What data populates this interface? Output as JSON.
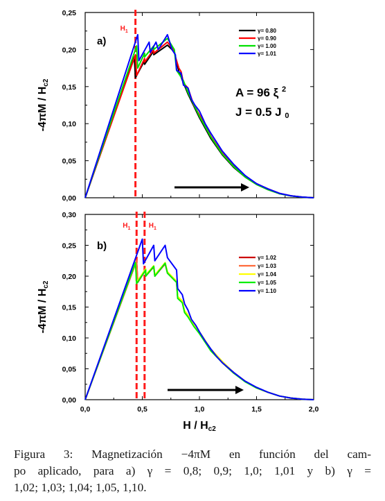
{
  "figure": {
    "caption_lines": [
      "Figura 3: Magnetización −4πM en función del cam-",
      "po aplicado, para a) γ = 0,8; 0,9; 1,0; 1,01 y b) γ =",
      "1,02; 1,03; 1,04; 1,05, 1,10."
    ]
  },
  "chart_data": [
    {
      "type": "line",
      "panel_label": "a)",
      "title": "",
      "xlabel": "",
      "ylabel": "-4πM / Hc2",
      "xlim": [
        0,
        2
      ],
      "ylim": [
        0,
        0.25
      ],
      "yticks": [
        "0,00",
        "0,05",
        "0,10",
        "0,15",
        "0,20",
        "0,25"
      ],
      "xticks": [],
      "grid": false,
      "legend_placement": "top-right",
      "annotations": {
        "marker_label": "H1",
        "marker_lines_x": [
          0.44
        ],
        "param_A": "A = 96 ξ 2",
        "param_J": "J = 0.5 J 0",
        "arrow": "increasing H"
      },
      "series": [
        {
          "name": "γ= 0.80",
          "color": "#000000",
          "points": [
            [
              0,
              0
            ],
            [
              0.43,
              0.19
            ],
            [
              0.44,
              0.162
            ],
            [
              0.52,
              0.185
            ],
            [
              0.52,
              0.18
            ],
            [
              0.6,
              0.198
            ],
            [
              0.6,
              0.193
            ],
            [
              0.72,
              0.206
            ],
            [
              0.78,
              0.197
            ],
            [
              0.82,
              0.17
            ],
            [
              0.9,
              0.14
            ],
            [
              1.0,
              0.108
            ],
            [
              1.1,
              0.08
            ],
            [
              1.2,
              0.058
            ],
            [
              1.3,
              0.041
            ],
            [
              1.4,
              0.028
            ],
            [
              1.5,
              0.018
            ],
            [
              1.6,
              0.011
            ],
            [
              1.7,
              0.0055
            ],
            [
              1.8,
              0.0025
            ],
            [
              1.9,
              0.0008
            ],
            [
              2.0,
              0
            ]
          ]
        },
        {
          "name": "γ= 0.90",
          "color": "#ff0000",
          "points": [
            [
              0,
              0
            ],
            [
              0.44,
              0.193
            ],
            [
              0.45,
              0.165
            ],
            [
              0.52,
              0.188
            ],
            [
              0.52,
              0.183
            ],
            [
              0.6,
              0.2
            ],
            [
              0.6,
              0.195
            ],
            [
              0.72,
              0.21
            ],
            [
              0.78,
              0.198
            ],
            [
              0.79,
              0.19
            ],
            [
              0.82,
              0.175
            ],
            [
              0.84,
              0.17
            ],
            [
              0.86,
              0.155
            ],
            [
              0.9,
              0.148
            ],
            [
              0.95,
              0.125
            ],
            [
              1.0,
              0.112
            ],
            [
              1.1,
              0.083
            ],
            [
              1.2,
              0.06
            ],
            [
              1.3,
              0.043
            ],
            [
              1.4,
              0.029
            ],
            [
              1.5,
              0.019
            ],
            [
              1.6,
              0.012
            ],
            [
              1.7,
              0.006
            ],
            [
              1.8,
              0.0027
            ],
            [
              1.9,
              0.0009
            ],
            [
              2.0,
              0
            ]
          ]
        },
        {
          "name": "γ= 1.00",
          "color": "#00e000",
          "points": [
            [
              0,
              0
            ],
            [
              0.45,
              0.205
            ],
            [
              0.46,
              0.175
            ],
            [
              0.52,
              0.195
            ],
            [
              0.52,
              0.19
            ],
            [
              0.6,
              0.205
            ],
            [
              0.6,
              0.2
            ],
            [
              0.72,
              0.215
            ],
            [
              0.78,
              0.2
            ],
            [
              0.8,
              0.172
            ],
            [
              0.86,
              0.158
            ],
            [
              0.9,
              0.142
            ],
            [
              1.0,
              0.11
            ],
            [
              1.1,
              0.082
            ],
            [
              1.2,
              0.059
            ],
            [
              1.3,
              0.042
            ],
            [
              1.4,
              0.028
            ],
            [
              1.5,
              0.018
            ],
            [
              1.6,
              0.011
            ],
            [
              1.7,
              0.0055
            ],
            [
              1.8,
              0.0025
            ],
            [
              1.9,
              0.0008
            ],
            [
              2.0,
              0
            ]
          ]
        },
        {
          "name": "γ= 1.01",
          "color": "#0000ff",
          "points": [
            [
              0,
              0
            ],
            [
              0.46,
              0.22
            ],
            [
              0.47,
              0.185
            ],
            [
              0.56,
              0.21
            ],
            [
              0.57,
              0.196
            ],
            [
              0.62,
              0.21
            ],
            [
              0.64,
              0.2
            ],
            [
              0.72,
              0.22
            ],
            [
              0.76,
              0.2
            ],
            [
              0.79,
              0.193
            ],
            [
              0.8,
              0.172
            ],
            [
              0.84,
              0.168
            ],
            [
              0.86,
              0.152
            ],
            [
              0.9,
              0.148
            ],
            [
              0.93,
              0.133
            ],
            [
              0.96,
              0.125
            ],
            [
              1.0,
              0.117
            ],
            [
              1.05,
              0.1
            ],
            [
              1.1,
              0.087
            ],
            [
              1.2,
              0.063
            ],
            [
              1.3,
              0.045
            ],
            [
              1.4,
              0.03
            ],
            [
              1.5,
              0.019
            ],
            [
              1.6,
              0.012
            ],
            [
              1.7,
              0.006
            ],
            [
              1.8,
              0.0027
            ],
            [
              1.9,
              0.0009
            ],
            [
              2.0,
              0
            ]
          ]
        }
      ]
    },
    {
      "type": "line",
      "panel_label": "b)",
      "title": "",
      "xlabel": "H / Hc2",
      "ylabel": "-4πM / Hc2",
      "xlim": [
        0,
        2
      ],
      "ylim": [
        0,
        0.3
      ],
      "yticks": [
        "0,00",
        "0,05",
        "0,10",
        "0,15",
        "0,20",
        "0,25",
        "0,30"
      ],
      "xticks": [
        "0,0",
        "0,5",
        "1,0",
        "1,5",
        "2,0"
      ],
      "grid": false,
      "legend_placement": "right",
      "annotations": {
        "marker_labels": [
          "H1",
          "H1"
        ],
        "marker_lines_x": [
          0.45,
          0.52
        ],
        "arrow": "increasing H"
      },
      "series": [
        {
          "name": "γ= 1.02",
          "color": "#cc0000",
          "points": [
            [
              0,
              0
            ],
            [
              0.45,
              0.225
            ],
            [
              0.46,
              0.19
            ],
            [
              0.53,
              0.21
            ],
            [
              0.53,
              0.2
            ],
            [
              0.6,
              0.215
            ],
            [
              0.61,
              0.2
            ],
            [
              0.7,
              0.22
            ],
            [
              0.72,
              0.205
            ],
            [
              0.8,
              0.19
            ],
            [
              0.81,
              0.165
            ],
            [
              0.85,
              0.158
            ],
            [
              0.87,
              0.142
            ],
            [
              0.9,
              0.135
            ],
            [
              0.95,
              0.12
            ],
            [
              1.0,
              0.108
            ],
            [
              1.05,
              0.094
            ],
            [
              1.1,
              0.08
            ],
            [
              1.2,
              0.06
            ],
            [
              1.3,
              0.043
            ],
            [
              1.4,
              0.03
            ],
            [
              1.5,
              0.019
            ],
            [
              1.6,
              0.012
            ],
            [
              1.7,
              0.006
            ],
            [
              1.8,
              0.0027
            ],
            [
              1.9,
              0.0009
            ],
            [
              2.0,
              0
            ]
          ]
        },
        {
          "name": "γ= 1.03",
          "color": "#ff6a3a",
          "points": [
            [
              0,
              0
            ],
            [
              0.45,
              0.226
            ],
            [
              0.46,
              0.192
            ],
            [
              0.53,
              0.211
            ],
            [
              0.53,
              0.201
            ],
            [
              0.6,
              0.216
            ],
            [
              0.61,
              0.201
            ],
            [
              0.7,
              0.221
            ],
            [
              0.72,
              0.206
            ],
            [
              0.8,
              0.191
            ],
            [
              0.81,
              0.166
            ],
            [
              0.85,
              0.159
            ],
            [
              0.87,
              0.143
            ],
            [
              0.9,
              0.136
            ],
            [
              0.95,
              0.121
            ],
            [
              1.0,
              0.109
            ],
            [
              1.05,
              0.095
            ],
            [
              1.1,
              0.081
            ],
            [
              1.2,
              0.061
            ],
            [
              1.3,
              0.044
            ],
            [
              1.4,
              0.03
            ],
            [
              1.5,
              0.019
            ],
            [
              1.6,
              0.012
            ],
            [
              1.7,
              0.006
            ],
            [
              1.8,
              0.0027
            ],
            [
              1.9,
              0.0009
            ],
            [
              2.0,
              0
            ]
          ]
        },
        {
          "name": "γ= 1.04",
          "color": "#ffff00",
          "points": [
            [
              0,
              0
            ],
            [
              0.44,
              0.222
            ],
            [
              0.45,
              0.19
            ],
            [
              0.53,
              0.212
            ],
            [
              0.53,
              0.202
            ],
            [
              0.6,
              0.217
            ],
            [
              0.61,
              0.202
            ],
            [
              0.7,
              0.222
            ],
            [
              0.72,
              0.207
            ],
            [
              0.8,
              0.192
            ],
            [
              0.81,
              0.167
            ],
            [
              0.85,
              0.16
            ],
            [
              0.87,
              0.144
            ],
            [
              0.9,
              0.137
            ],
            [
              0.95,
              0.122
            ],
            [
              1.0,
              0.11
            ],
            [
              1.05,
              0.096
            ],
            [
              1.1,
              0.082
            ],
            [
              1.2,
              0.062
            ],
            [
              1.3,
              0.044
            ],
            [
              1.4,
              0.03
            ],
            [
              1.5,
              0.019
            ],
            [
              1.6,
              0.012
            ],
            [
              1.7,
              0.006
            ],
            [
              1.8,
              0.0027
            ],
            [
              1.9,
              0.0009
            ],
            [
              2.0,
              0
            ]
          ]
        },
        {
          "name": "γ= 1.05",
          "color": "#00ee00",
          "points": [
            [
              0,
              0
            ],
            [
              0.44,
              0.222
            ],
            [
              0.45,
              0.188
            ],
            [
              0.53,
              0.21
            ],
            [
              0.53,
              0.2
            ],
            [
              0.6,
              0.216
            ],
            [
              0.61,
              0.2
            ],
            [
              0.7,
              0.221
            ],
            [
              0.72,
              0.205
            ],
            [
              0.8,
              0.19
            ],
            [
              0.81,
              0.164
            ],
            [
              0.85,
              0.157
            ],
            [
              0.87,
              0.141
            ],
            [
              0.9,
              0.134
            ],
            [
              0.95,
              0.119
            ],
            [
              1.0,
              0.107
            ],
            [
              1.05,
              0.093
            ],
            [
              1.1,
              0.079
            ],
            [
              1.2,
              0.06
            ],
            [
              1.3,
              0.043
            ],
            [
              1.4,
              0.029
            ],
            [
              1.5,
              0.019
            ],
            [
              1.6,
              0.012
            ],
            [
              1.7,
              0.006
            ],
            [
              1.8,
              0.0027
            ],
            [
              1.9,
              0.0009
            ],
            [
              2.0,
              0
            ]
          ]
        },
        {
          "name": "γ= 1.10",
          "color": "#0000ff",
          "points": [
            [
              0,
              0
            ],
            [
              0.5,
              0.26
            ],
            [
              0.51,
              0.22
            ],
            [
              0.6,
              0.25
            ],
            [
              0.61,
              0.225
            ],
            [
              0.7,
              0.25
            ],
            [
              0.72,
              0.23
            ],
            [
              0.8,
              0.21
            ],
            [
              0.81,
              0.18
            ],
            [
              0.85,
              0.17
            ],
            [
              0.87,
              0.155
            ],
            [
              0.9,
              0.145
            ],
            [
              0.93,
              0.13
            ],
            [
              0.97,
              0.12
            ],
            [
              1.0,
              0.11
            ],
            [
              1.05,
              0.095
            ],
            [
              1.1,
              0.082
            ],
            [
              1.15,
              0.07
            ],
            [
              1.2,
              0.06
            ],
            [
              1.3,
              0.044
            ],
            [
              1.4,
              0.03
            ],
            [
              1.5,
              0.02
            ],
            [
              1.6,
              0.012
            ],
            [
              1.7,
              0.006
            ],
            [
              1.8,
              0.0027
            ],
            [
              1.9,
              0.0009
            ],
            [
              2.0,
              0
            ]
          ]
        }
      ]
    }
  ]
}
